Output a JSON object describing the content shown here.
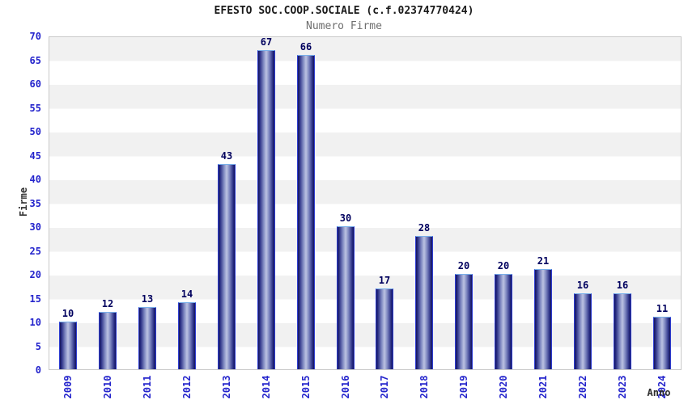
{
  "chart_data": {
    "type": "bar",
    "title": "EFESTO SOC.COOP.SOCIALE (c.f.02374770424)",
    "subtitle": "Numero Firme",
    "xlabel": "Anno",
    "ylabel": "Firme",
    "categories": [
      "2009",
      "2010",
      "2011",
      "2012",
      "2013",
      "2014",
      "2015",
      "2016",
      "2017",
      "2018",
      "2019",
      "2020",
      "2021",
      "2022",
      "2023",
      "2024"
    ],
    "values": [
      10,
      12,
      13,
      14,
      43,
      67,
      66,
      30,
      17,
      28,
      20,
      20,
      21,
      16,
      16,
      11
    ],
    "ylim": [
      0,
      70
    ],
    "ytick_step": 5,
    "grid": "horizontal-bands",
    "legend": "none",
    "colors": {
      "tick_label": "#2424cc",
      "value_label": "#00005e",
      "bar_edge_dark": "#14145c",
      "bar_shadow": "#2a2f85",
      "bar_mid": "#7d86c0",
      "bar_highlight": "#bcc3e2",
      "bar_border": "#2e3dd2",
      "bar_top_highlight": "#79b0ea",
      "band_gray": "#f1f1f1",
      "band_white": "#ffffff",
      "plot_border": "#c9c9c9",
      "title_color": "#1a1a1a",
      "subtitle_color": "#6e6e6e",
      "axis_title_color": "#333333"
    }
  }
}
